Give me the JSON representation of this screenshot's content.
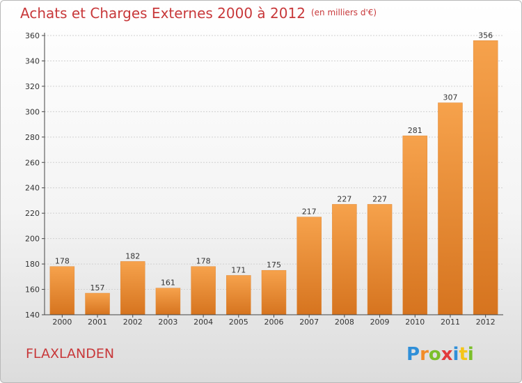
{
  "header": {
    "title": "Achats et Charges Externes 2000 à 2012",
    "unit": "(en milliers d'€)"
  },
  "footer": {
    "location": "FLAXLANDEN",
    "logo_text": "Proxiti"
  },
  "colors": {
    "title": "#c8383a",
    "bar_light": "#f6a24c",
    "bar_dark": "#d6741f",
    "axis": "#444444",
    "grid": "#d0d0d0"
  },
  "chart_data": {
    "type": "bar",
    "categories": [
      "2000",
      "2001",
      "2002",
      "2003",
      "2004",
      "2005",
      "2006",
      "2007",
      "2008",
      "2009",
      "2010",
      "2011",
      "2012"
    ],
    "values": [
      178,
      157,
      182,
      161,
      178,
      171,
      175,
      217,
      227,
      227,
      281,
      307,
      356
    ],
    "ylim": [
      140,
      360
    ],
    "yticks": [
      140,
      160,
      180,
      200,
      220,
      240,
      260,
      280,
      300,
      320,
      340,
      360
    ],
    "grid": "horizontal dotted",
    "data_labels": true
  }
}
